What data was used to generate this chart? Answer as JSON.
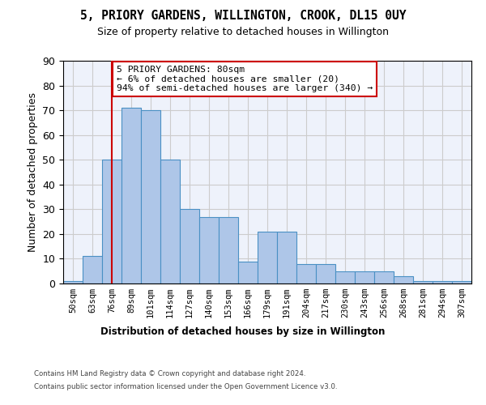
{
  "title": "5, PRIORY GARDENS, WILLINGTON, CROOK, DL15 0UY",
  "subtitle": "Size of property relative to detached houses in Willington",
  "xlabel": "Distribution of detached houses by size in Willington",
  "ylabel": "Number of detached properties",
  "bar_values": [
    1,
    11,
    50,
    71,
    70,
    50,
    30,
    27,
    27,
    9,
    21,
    21,
    8,
    8,
    5,
    5,
    5,
    3,
    1,
    1,
    1
  ],
  "categories": [
    "50sqm",
    "63sqm",
    "76sqm",
    "89sqm",
    "101sqm",
    "114sqm",
    "127sqm",
    "140sqm",
    "153sqm",
    "166sqm",
    "179sqm",
    "191sqm",
    "204sqm",
    "217sqm",
    "230sqm",
    "243sqm",
    "256sqm",
    "268sqm",
    "281sqm",
    "294sqm",
    "307sqm"
  ],
  "bar_color": "#aec6e8",
  "bar_edge_color": "#4a90c4",
  "grid_color": "#cccccc",
  "bg_color": "#eef2fb",
  "vline_x": 2,
  "vline_color": "#cc0000",
  "annotation_text": "5 PRIORY GARDENS: 80sqm\n← 6% of detached houses are smaller (20)\n94% of semi-detached houses are larger (340) →",
  "annotation_box_color": "#cc0000",
  "ylim": [
    0,
    90
  ],
  "yticks": [
    0,
    10,
    20,
    30,
    40,
    50,
    60,
    70,
    80,
    90
  ],
  "footer1": "Contains HM Land Registry data © Crown copyright and database right 2024.",
  "footer2": "Contains public sector information licensed under the Open Government Licence v3.0."
}
